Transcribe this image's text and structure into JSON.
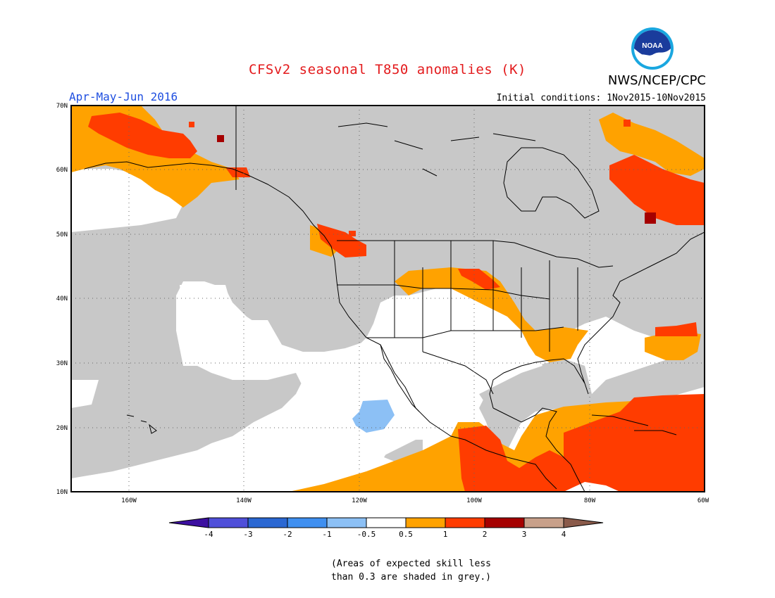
{
  "header": {
    "title": "CFSv2 seasonal T850 anomalies (K)",
    "organization": "NWS/NCEP/CPC",
    "period": "Apr-May-Jun 2016",
    "initial_conditions": "Initial conditions: 1Nov2015-10Nov2015"
  },
  "logo": {
    "text": "NOAA"
  },
  "map": {
    "lat_labels": [
      "70N",
      "60N",
      "50N",
      "40N",
      "30N",
      "20N",
      "10N"
    ],
    "lon_labels": [
      "160W",
      "140W",
      "120W",
      "100W",
      "80W",
      "60W"
    ],
    "grid": true,
    "extent": {
      "lon": [
        -170,
        -60
      ],
      "lat": [
        10,
        70
      ]
    }
  },
  "legend": {
    "labels": [
      "-4",
      "-3",
      "-2",
      "-1",
      "-0.5",
      "0.5",
      "1",
      "2",
      "3",
      "4"
    ],
    "colors": [
      "#3c0fa0",
      "#4f4fd9",
      "#2a67d2",
      "#3f8ff0",
      "#8cc0f5",
      "#ffffff",
      "#ffa200",
      "#ff3c00",
      "#a50000",
      "#c8a08a",
      "#8a5a4a"
    ]
  },
  "colors": {
    "land_grey": "#c8c8c8",
    "anom_05_1": "#ffa200",
    "anom_1_2": "#ff3c00",
    "anom_2_3": "#a50000",
    "anom_neg": "#8cc0f5"
  },
  "note": {
    "line1": "(Areas of expected skill less",
    "line2": "than 0.3 are shaded in grey.)"
  }
}
